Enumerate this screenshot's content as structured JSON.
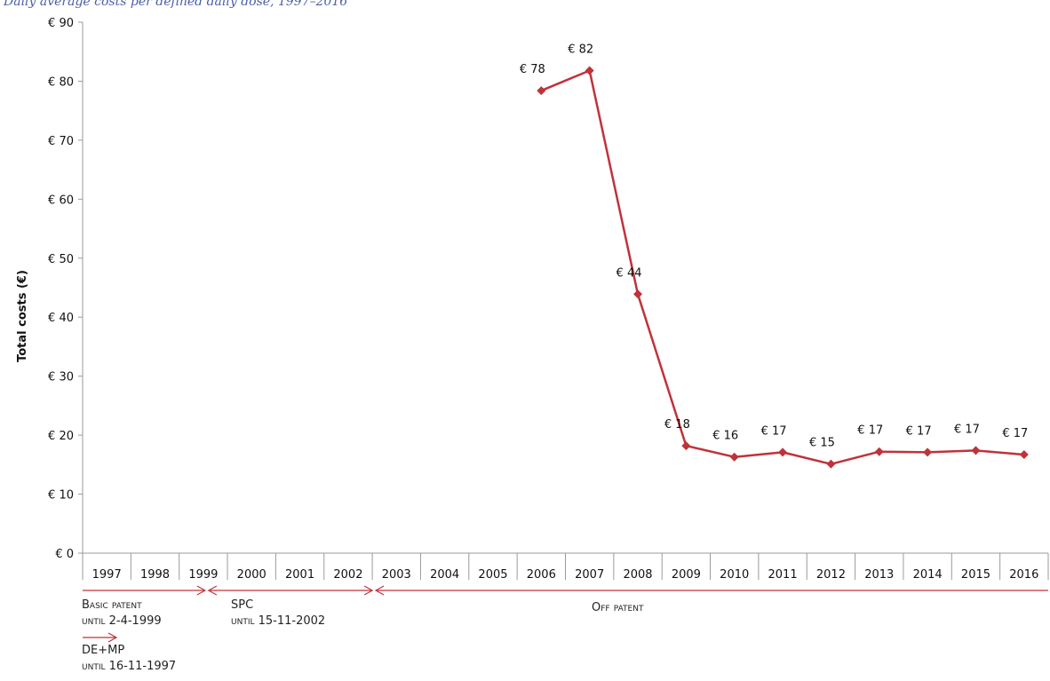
{
  "caption": "Daily average costs per defined daily dose, 1997–2016",
  "colors": {
    "series": "#c0323a",
    "axis": "#9a9a9a",
    "text": "#111111"
  },
  "chart_data": {
    "type": "line",
    "ylabel": "Total costs (€)",
    "ylim": [
      0,
      90
    ],
    "yticks": [
      0,
      10,
      20,
      30,
      40,
      50,
      60,
      70,
      80,
      90
    ],
    "ytick_labels": [
      "€ 0",
      "€ 10",
      "€ 20",
      "€ 30",
      "€ 40",
      "€ 50",
      "€ 60",
      "€ 70",
      "€ 80",
      "€ 90"
    ],
    "categories": [
      "1997",
      "1998",
      "1999",
      "2000",
      "2001",
      "2002",
      "2003",
      "2004",
      "2005",
      "2006",
      "2007",
      "2008",
      "2009",
      "2010",
      "2011",
      "2012",
      "2013",
      "2014",
      "2015",
      "2016"
    ],
    "series": [
      {
        "values": [
          null,
          null,
          null,
          null,
          null,
          null,
          null,
          null,
          null,
          78.4,
          81.8,
          43.9,
          18.2,
          16.3,
          17.1,
          15.1,
          17.2,
          17.1,
          17.4,
          16.7
        ],
        "labels": [
          null,
          null,
          null,
          null,
          null,
          null,
          null,
          null,
          null,
          "€ 78",
          "€ 82",
          "€ 44",
          "€ 18",
          "€ 16",
          "€ 17",
          "€ 15",
          "€ 17",
          "€ 17",
          "€ 17",
          "€ 17"
        ]
      }
    ],
    "grid": false,
    "legend": "none",
    "annotations": [
      {
        "line1": "Basic patent",
        "line2": "until 2-4-1999",
        "from": "1997",
        "to": "1999"
      },
      {
        "line1": "SPC",
        "line2": "until 15-11-2002",
        "from": "1999",
        "to": "2002"
      },
      {
        "line1": "Off patent",
        "line2": "",
        "from": "2002",
        "to": "2016"
      },
      {
        "line1": "DE+MP",
        "line2": "until 16-11-1997",
        "from": "1997",
        "to": "1997"
      }
    ]
  }
}
